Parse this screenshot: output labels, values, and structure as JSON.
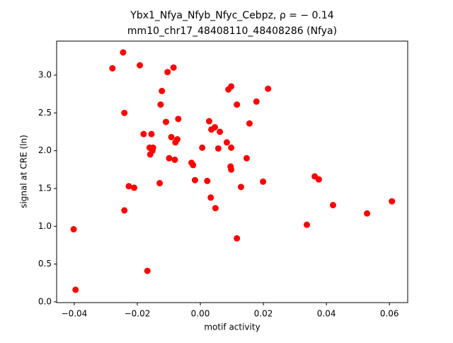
{
  "chart_data": {
    "type": "scatter",
    "title": "Ybx1_Nfya_Nfyb_Nfyc_Cebpz, ρ = − 0.14",
    "subtitle": "mm10_chr17_48408110_48408286 (Nfya)",
    "x_label": "motif activity",
    "y_label": "signal at CRE (ln)",
    "color": "#ff0000",
    "x": [
      -0.0402,
      -0.0396,
      -0.0279,
      -0.0245,
      -0.0241,
      -0.0241,
      -0.0227,
      -0.021,
      -0.0192,
      -0.018,
      -0.0168,
      -0.0161,
      -0.0159,
      -0.0155,
      -0.0152,
      -0.015,
      -0.0129,
      -0.0126,
      -0.0122,
      -0.0109,
      -0.0104,
      -0.0099,
      -0.0092,
      -0.0085,
      -0.0081,
      -0.0079,
      -0.0073,
      -0.007,
      -0.0028,
      -0.0023,
      -0.0017,
      0.0006,
      0.0022,
      0.0028,
      0.0033,
      0.0035,
      0.0046,
      0.0048,
      0.0057,
      0.0062,
      0.0084,
      0.0089,
      0.0096,
      0.0098,
      0.0098,
      0.0098,
      0.0116,
      0.0116,
      0.0129,
      0.0147,
      0.0156,
      0.0178,
      0.0199,
      0.0215,
      0.0338,
      0.0363,
      0.0376,
      0.0421,
      0.0529,
      0.0608
    ],
    "values": [
      0.96,
      0.16,
      3.09,
      3.3,
      2.5,
      1.21,
      1.53,
      1.51,
      3.13,
      2.22,
      0.41,
      2.04,
      1.95,
      2.22,
      2.0,
      2.04,
      1.57,
      2.61,
      2.79,
      2.38,
      3.04,
      1.9,
      2.18,
      3.1,
      1.88,
      2.11,
      2.15,
      2.42,
      1.84,
      1.81,
      1.61,
      2.04,
      1.6,
      2.39,
      1.38,
      2.28,
      2.31,
      1.24,
      2.03,
      2.25,
      2.11,
      2.81,
      1.79,
      1.75,
      2.04,
      2.85,
      2.61,
      0.84,
      1.52,
      1.9,
      2.36,
      2.65,
      1.59,
      2.82,
      1.02,
      1.66,
      1.62,
      1.28,
      1.17,
      1.33
    ],
    "xlim": [
      -0.0456,
      0.0658
    ],
    "ylim": [
      -0.01,
      3.45
    ],
    "xticks": [
      {
        "value": -0.04,
        "label": "−0.04"
      },
      {
        "value": -0.02,
        "label": "−0.02"
      },
      {
        "value": 0,
        "label": "0.00"
      },
      {
        "value": 0.02,
        "label": "0.02"
      },
      {
        "value": 0.04,
        "label": "0.04"
      },
      {
        "value": 0.06,
        "label": "0.06"
      }
    ],
    "yticks": [
      {
        "value": 0,
        "label": "0.0"
      },
      0.5,
      {
        "value": 1,
        "label": "1.0"
      },
      1.5,
      {
        "value": 2,
        "label": "2.0"
      },
      2.5,
      {
        "value": 3,
        "label": "3.0"
      }
    ]
  }
}
